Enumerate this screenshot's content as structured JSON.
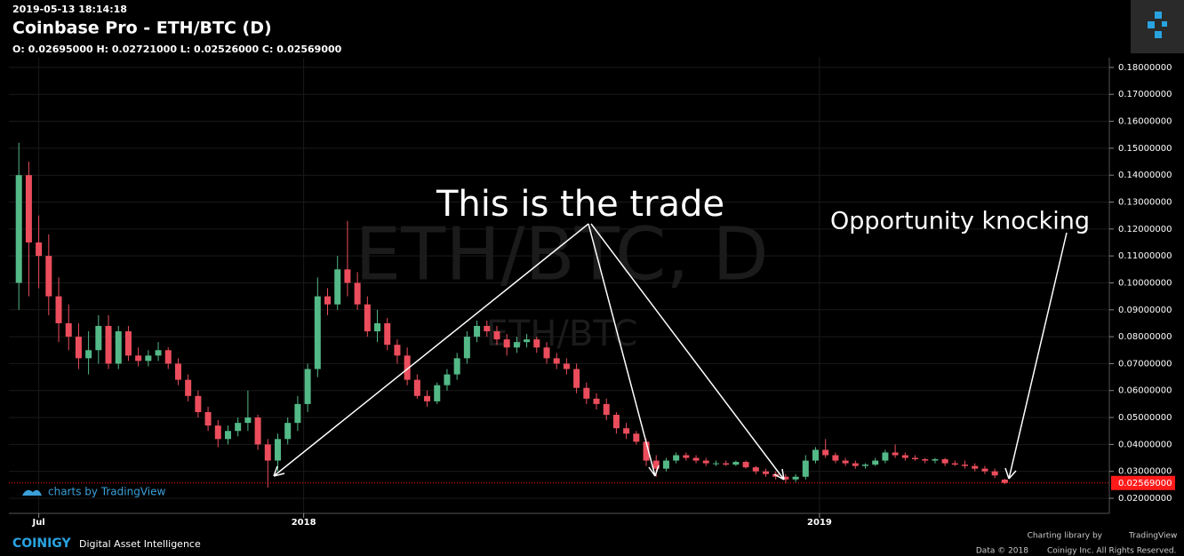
{
  "header": {
    "timestamp": "2019-05-13 18:14:18",
    "title": "Coinbase Pro - ETH/BTC (D)",
    "ohlc_text": "O: 0.02695000 H: 0.02721000 L: 0.02526000 C: 0.02569000"
  },
  "footer": {
    "brand": "COINIGY",
    "tagline": "Digital Asset Intelligence",
    "charting_by": "Charting library by",
    "charting_brand": "TradingView",
    "data_note": "Data © 2018",
    "rights": "Coinigy Inc. All Rights Reserved."
  },
  "chart_data": {
    "type": "candlestick",
    "watermark": "ETH/BTC, D",
    "watermark_sub": "ETH/BTC",
    "credit": "charts by TradingView",
    "annotations": [
      "This is the trade",
      "Opportunity knocking"
    ],
    "up_color": "#53b987",
    "down_color": "#eb4d5c",
    "grid": true,
    "xlim": [
      0,
      110.5
    ],
    "xticks": [
      {
        "value": 3,
        "label": "Jul"
      },
      {
        "value": 29.6,
        "label": "2018"
      },
      {
        "value": 81.4,
        "label": "2019"
      }
    ],
    "ylim": [
      0.0144,
      0.1836
    ],
    "yticks": [
      {
        "value": 0.02,
        "label": "0.02000000"
      },
      {
        "value": 0.03,
        "label": "0.03000000"
      },
      {
        "value": 0.04,
        "label": "0.04000000"
      },
      {
        "value": 0.05,
        "label": "0.05000000"
      },
      {
        "value": 0.06,
        "label": "0.06000000"
      },
      {
        "value": 0.07,
        "label": "0.07000000"
      },
      {
        "value": 0.08,
        "label": "0.08000000"
      },
      {
        "value": 0.09,
        "label": "0.09000000"
      },
      {
        "value": 0.1,
        "label": "0.10000000"
      },
      {
        "value": 0.11,
        "label": "0.11000000"
      },
      {
        "value": 0.12,
        "label": "0.12000000"
      },
      {
        "value": 0.13,
        "label": "0.13000000"
      },
      {
        "value": 0.14,
        "label": "0.14000000"
      },
      {
        "value": 0.15,
        "label": "0.15000000"
      },
      {
        "value": 0.16,
        "label": "0.16000000"
      },
      {
        "value": 0.17,
        "label": "0.17000000"
      },
      {
        "value": 0.18,
        "label": "0.18000000"
      }
    ],
    "price_line": {
      "value": 0.02569,
      "label": "0.02569000",
      "color": "#ff1a1a"
    },
    "x": [
      1,
      2,
      3,
      4,
      5,
      6,
      7,
      8,
      9,
      10,
      11,
      12,
      13,
      14,
      15,
      16,
      17,
      18,
      19,
      20,
      21,
      22,
      23,
      24,
      25,
      26,
      27,
      28,
      29,
      30,
      31,
      32,
      33,
      34,
      35,
      36,
      37,
      38,
      39,
      40,
      41,
      42,
      43,
      44,
      45,
      46,
      47,
      48,
      49,
      50,
      51,
      52,
      53,
      54,
      55,
      56,
      57,
      58,
      59,
      60,
      61,
      62,
      63,
      64,
      65,
      66,
      67,
      68,
      69,
      70,
      71,
      72,
      73,
      74,
      75,
      76,
      77,
      78,
      79,
      80,
      81,
      82,
      83,
      84,
      85,
      86,
      87,
      88,
      89,
      90,
      91,
      92,
      93,
      94,
      95,
      96,
      97,
      98,
      99,
      100
    ],
    "open": [
      0.1,
      0.14,
      0.115,
      0.11,
      0.095,
      0.085,
      0.08,
      0.072,
      0.075,
      0.084,
      0.07,
      0.082,
      0.073,
      0.071,
      0.073,
      0.075,
      0.07,
      0.064,
      0.058,
      0.052,
      0.047,
      0.042,
      0.045,
      0.048,
      0.05,
      0.04,
      0.034,
      0.042,
      0.048,
      0.055,
      0.068,
      0.095,
      0.092,
      0.105,
      0.1,
      0.092,
      0.082,
      0.085,
      0.077,
      0.073,
      0.064,
      0.058,
      0.056,
      0.062,
      0.066,
      0.072,
      0.08,
      0.084,
      0.082,
      0.079,
      0.076,
      0.078,
      0.079,
      0.076,
      0.072,
      0.07,
      0.068,
      0.061,
      0.057,
      0.055,
      0.051,
      0.046,
      0.044,
      0.041,
      0.034,
      0.031,
      0.034,
      0.036,
      0.035,
      0.034,
      0.033,
      0.033,
      0.0325,
      0.0335,
      0.0315,
      0.03,
      0.029,
      0.028,
      0.027,
      0.028,
      0.034,
      0.038,
      0.036,
      0.034,
      0.033,
      0.032,
      0.0325,
      0.034,
      0.037,
      0.036,
      0.035,
      0.0345,
      0.034,
      0.0345,
      0.033,
      0.0325,
      0.032,
      0.031,
      0.03,
      0.02695
    ],
    "high": [
      0.152,
      0.145,
      0.125,
      0.118,
      0.102,
      0.092,
      0.085,
      0.082,
      0.088,
      0.088,
      0.084,
      0.084,
      0.076,
      0.075,
      0.078,
      0.076,
      0.072,
      0.066,
      0.06,
      0.054,
      0.049,
      0.047,
      0.05,
      0.06,
      0.051,
      0.042,
      0.044,
      0.05,
      0.058,
      0.07,
      0.102,
      0.098,
      0.11,
      0.123,
      0.104,
      0.095,
      0.09,
      0.087,
      0.079,
      0.076,
      0.066,
      0.06,
      0.063,
      0.068,
      0.074,
      0.082,
      0.086,
      0.086,
      0.084,
      0.081,
      0.08,
      0.081,
      0.08,
      0.078,
      0.074,
      0.072,
      0.07,
      0.063,
      0.059,
      0.057,
      0.052,
      0.048,
      0.045,
      0.042,
      0.036,
      0.035,
      0.037,
      0.037,
      0.036,
      0.035,
      0.034,
      0.034,
      0.034,
      0.034,
      0.032,
      0.031,
      0.03,
      0.029,
      0.029,
      0.036,
      0.039,
      0.042,
      0.037,
      0.035,
      0.034,
      0.033,
      0.035,
      0.038,
      0.04,
      0.037,
      0.036,
      0.035,
      0.035,
      0.035,
      0.034,
      0.034,
      0.033,
      0.032,
      0.031,
      0.02721
    ],
    "low": [
      0.09,
      0.095,
      0.098,
      0.088,
      0.078,
      0.075,
      0.068,
      0.066,
      0.07,
      0.068,
      0.068,
      0.071,
      0.069,
      0.069,
      0.071,
      0.068,
      0.062,
      0.056,
      0.05,
      0.045,
      0.039,
      0.04,
      0.043,
      0.045,
      0.038,
      0.024,
      0.03,
      0.04,
      0.045,
      0.052,
      0.065,
      0.088,
      0.09,
      0.095,
      0.09,
      0.08,
      0.078,
      0.075,
      0.07,
      0.062,
      0.057,
      0.054,
      0.055,
      0.06,
      0.064,
      0.07,
      0.078,
      0.08,
      0.077,
      0.073,
      0.074,
      0.076,
      0.074,
      0.07,
      0.068,
      0.066,
      0.059,
      0.055,
      0.053,
      0.049,
      0.044,
      0.042,
      0.04,
      0.032,
      0.028,
      0.03,
      0.033,
      0.034,
      0.033,
      0.032,
      0.032,
      0.032,
      0.032,
      0.031,
      0.029,
      0.028,
      0.027,
      0.0255,
      0.026,
      0.027,
      0.033,
      0.035,
      0.033,
      0.032,
      0.031,
      0.031,
      0.032,
      0.033,
      0.035,
      0.034,
      0.034,
      0.033,
      0.033,
      0.032,
      0.032,
      0.031,
      0.03,
      0.029,
      0.0275,
      0.02526
    ],
    "close": [
      0.14,
      0.115,
      0.11,
      0.095,
      0.085,
      0.08,
      0.072,
      0.075,
      0.084,
      0.07,
      0.082,
      0.073,
      0.071,
      0.073,
      0.075,
      0.07,
      0.064,
      0.058,
      0.052,
      0.047,
      0.042,
      0.045,
      0.048,
      0.05,
      0.04,
      0.034,
      0.042,
      0.048,
      0.055,
      0.068,
      0.095,
      0.092,
      0.105,
      0.1,
      0.092,
      0.082,
      0.085,
      0.077,
      0.073,
      0.064,
      0.058,
      0.056,
      0.062,
      0.066,
      0.072,
      0.08,
      0.084,
      0.082,
      0.079,
      0.076,
      0.078,
      0.079,
      0.076,
      0.072,
      0.07,
      0.068,
      0.061,
      0.057,
      0.055,
      0.051,
      0.046,
      0.044,
      0.041,
      0.034,
      0.031,
      0.034,
      0.036,
      0.035,
      0.034,
      0.033,
      0.033,
      0.0325,
      0.0335,
      0.0315,
      0.03,
      0.029,
      0.028,
      0.027,
      0.028,
      0.034,
      0.038,
      0.036,
      0.034,
      0.033,
      0.032,
      0.0325,
      0.034,
      0.037,
      0.036,
      0.035,
      0.0345,
      0.034,
      0.0345,
      0.033,
      0.0325,
      0.032,
      0.031,
      0.03,
      0.0285,
      0.02569
    ]
  }
}
